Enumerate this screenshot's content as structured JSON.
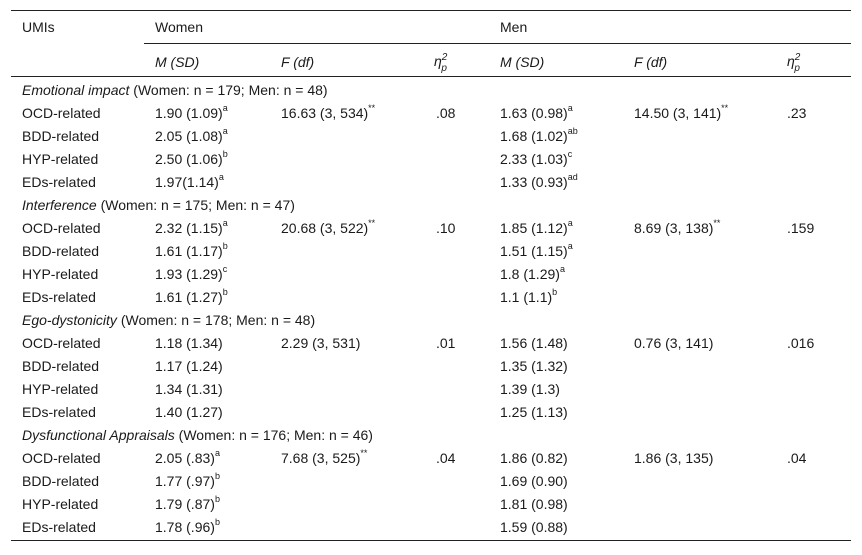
{
  "header": {
    "umis": "UMIs",
    "women": "Women",
    "men": "Men",
    "m_sd": "M (SD)",
    "f_df": "F (df)",
    "eta_symbol": "η",
    "eta_sup": "2",
    "eta_sub": "p"
  },
  "sections": [
    {
      "title_italic": "Emotional impact",
      "title_rest": " (Women: n = 179; Men: n = 48)",
      "rows": [
        {
          "label": "OCD-related",
          "w_m": "1.90 (1.09)",
          "w_m_sup": "a",
          "w_f": "16.63 (3, 534)",
          "w_f_sup": "**",
          "w_eta": ".08",
          "m_m": "1.63 (0.98)",
          "m_m_sup": "a",
          "m_f": "14.50 (3, 141)",
          "m_f_sup": "**",
          "m_eta": ".23"
        },
        {
          "label": "BDD-related",
          "w_m": "2.05 (1.08)",
          "w_m_sup": "a",
          "m_m": "1.68 (1.02)",
          "m_m_sup": "ab"
        },
        {
          "label": "HYP-related",
          "w_m": "2.50 (1.06)",
          "w_m_sup": "b",
          "m_m": "2.33 (1.03)",
          "m_m_sup": "c"
        },
        {
          "label": "EDs-related",
          "w_m": "1.97(1.14)",
          "w_m_sup": "a",
          "m_m": "1.33 (0.93)",
          "m_m_sup": "ad"
        }
      ]
    },
    {
      "title_italic": "Interference",
      "title_rest": " (Women: n = 175; Men: n = 47)",
      "rows": [
        {
          "label": "OCD-related",
          "w_m": "2.32 (1.15)",
          "w_m_sup": "a",
          "w_f": "20.68 (3, 522)",
          "w_f_sup": "**",
          "w_eta": ".10",
          "m_m": "1.85 (1.12)",
          "m_m_sup": "a",
          "m_f": "8.69 (3, 138)",
          "m_f_sup": "**",
          "m_eta": ".159"
        },
        {
          "label": "BDD-related",
          "w_m": "1.61 (1.17)",
          "w_m_sup": "b",
          "m_m": "1.51 (1.15)",
          "m_m_sup": "a"
        },
        {
          "label": "HYP-related",
          "w_m": "1.93 (1.29)",
          "w_m_sup": "c",
          "m_m": "1.8 (1.29)",
          "m_m_sup": "a"
        },
        {
          "label": "EDs-related",
          "w_m": "1.61 (1.27)",
          "w_m_sup": "b",
          "m_m": "1.1 (1.1)",
          "m_m_sup": "b"
        }
      ]
    },
    {
      "title_italic": "Ego-dystonicity",
      "title_rest": " (Women: n = 178; Men: n = 48)",
      "rows": [
        {
          "label": "OCD-related",
          "w_m": "1.18 (1.34)",
          "w_f": "2.29 (3, 531)",
          "w_eta": ".01",
          "m_m": "1.56 (1.48)",
          "m_f": "0.76 (3, 141)",
          "m_eta": ".016"
        },
        {
          "label": "BDD-related",
          "w_m": "1.17 (1.24)",
          "m_m": "1.35 (1.32)"
        },
        {
          "label": "HYP-related",
          "w_m": "1.34 (1.31)",
          "m_m": "1.39 (1.3)"
        },
        {
          "label": "EDs-related",
          "w_m": "1.40 (1.27)",
          "m_m": "1.25 (1.13)"
        }
      ]
    },
    {
      "title_italic": "Dysfunctional Appraisals",
      "title_rest": " (Women: n = 176; Men: n = 46)",
      "rows": [
        {
          "label": "OCD-related",
          "w_m": "2.05 (.83)",
          "w_m_sup": "a",
          "w_f": "7.68 (3, 525)",
          "w_f_sup": "**",
          "w_eta": ".04",
          "m_m": "1.86 (0.82)",
          "m_f": "1.86 (3, 135)",
          "m_eta": ".04"
        },
        {
          "label": "BDD-related",
          "w_m": "1.77 (.97)",
          "w_m_sup": "b",
          "m_m": "1.69 (0.90)"
        },
        {
          "label": "HYP-related",
          "w_m": "1.79 (.87)",
          "w_m_sup": "b",
          "m_m": "1.81 (0.98)"
        },
        {
          "label": "EDs-related",
          "w_m": "1.78 (.96)",
          "w_m_sup": "b",
          "m_m": "1.59 (0.88)"
        }
      ]
    }
  ]
}
